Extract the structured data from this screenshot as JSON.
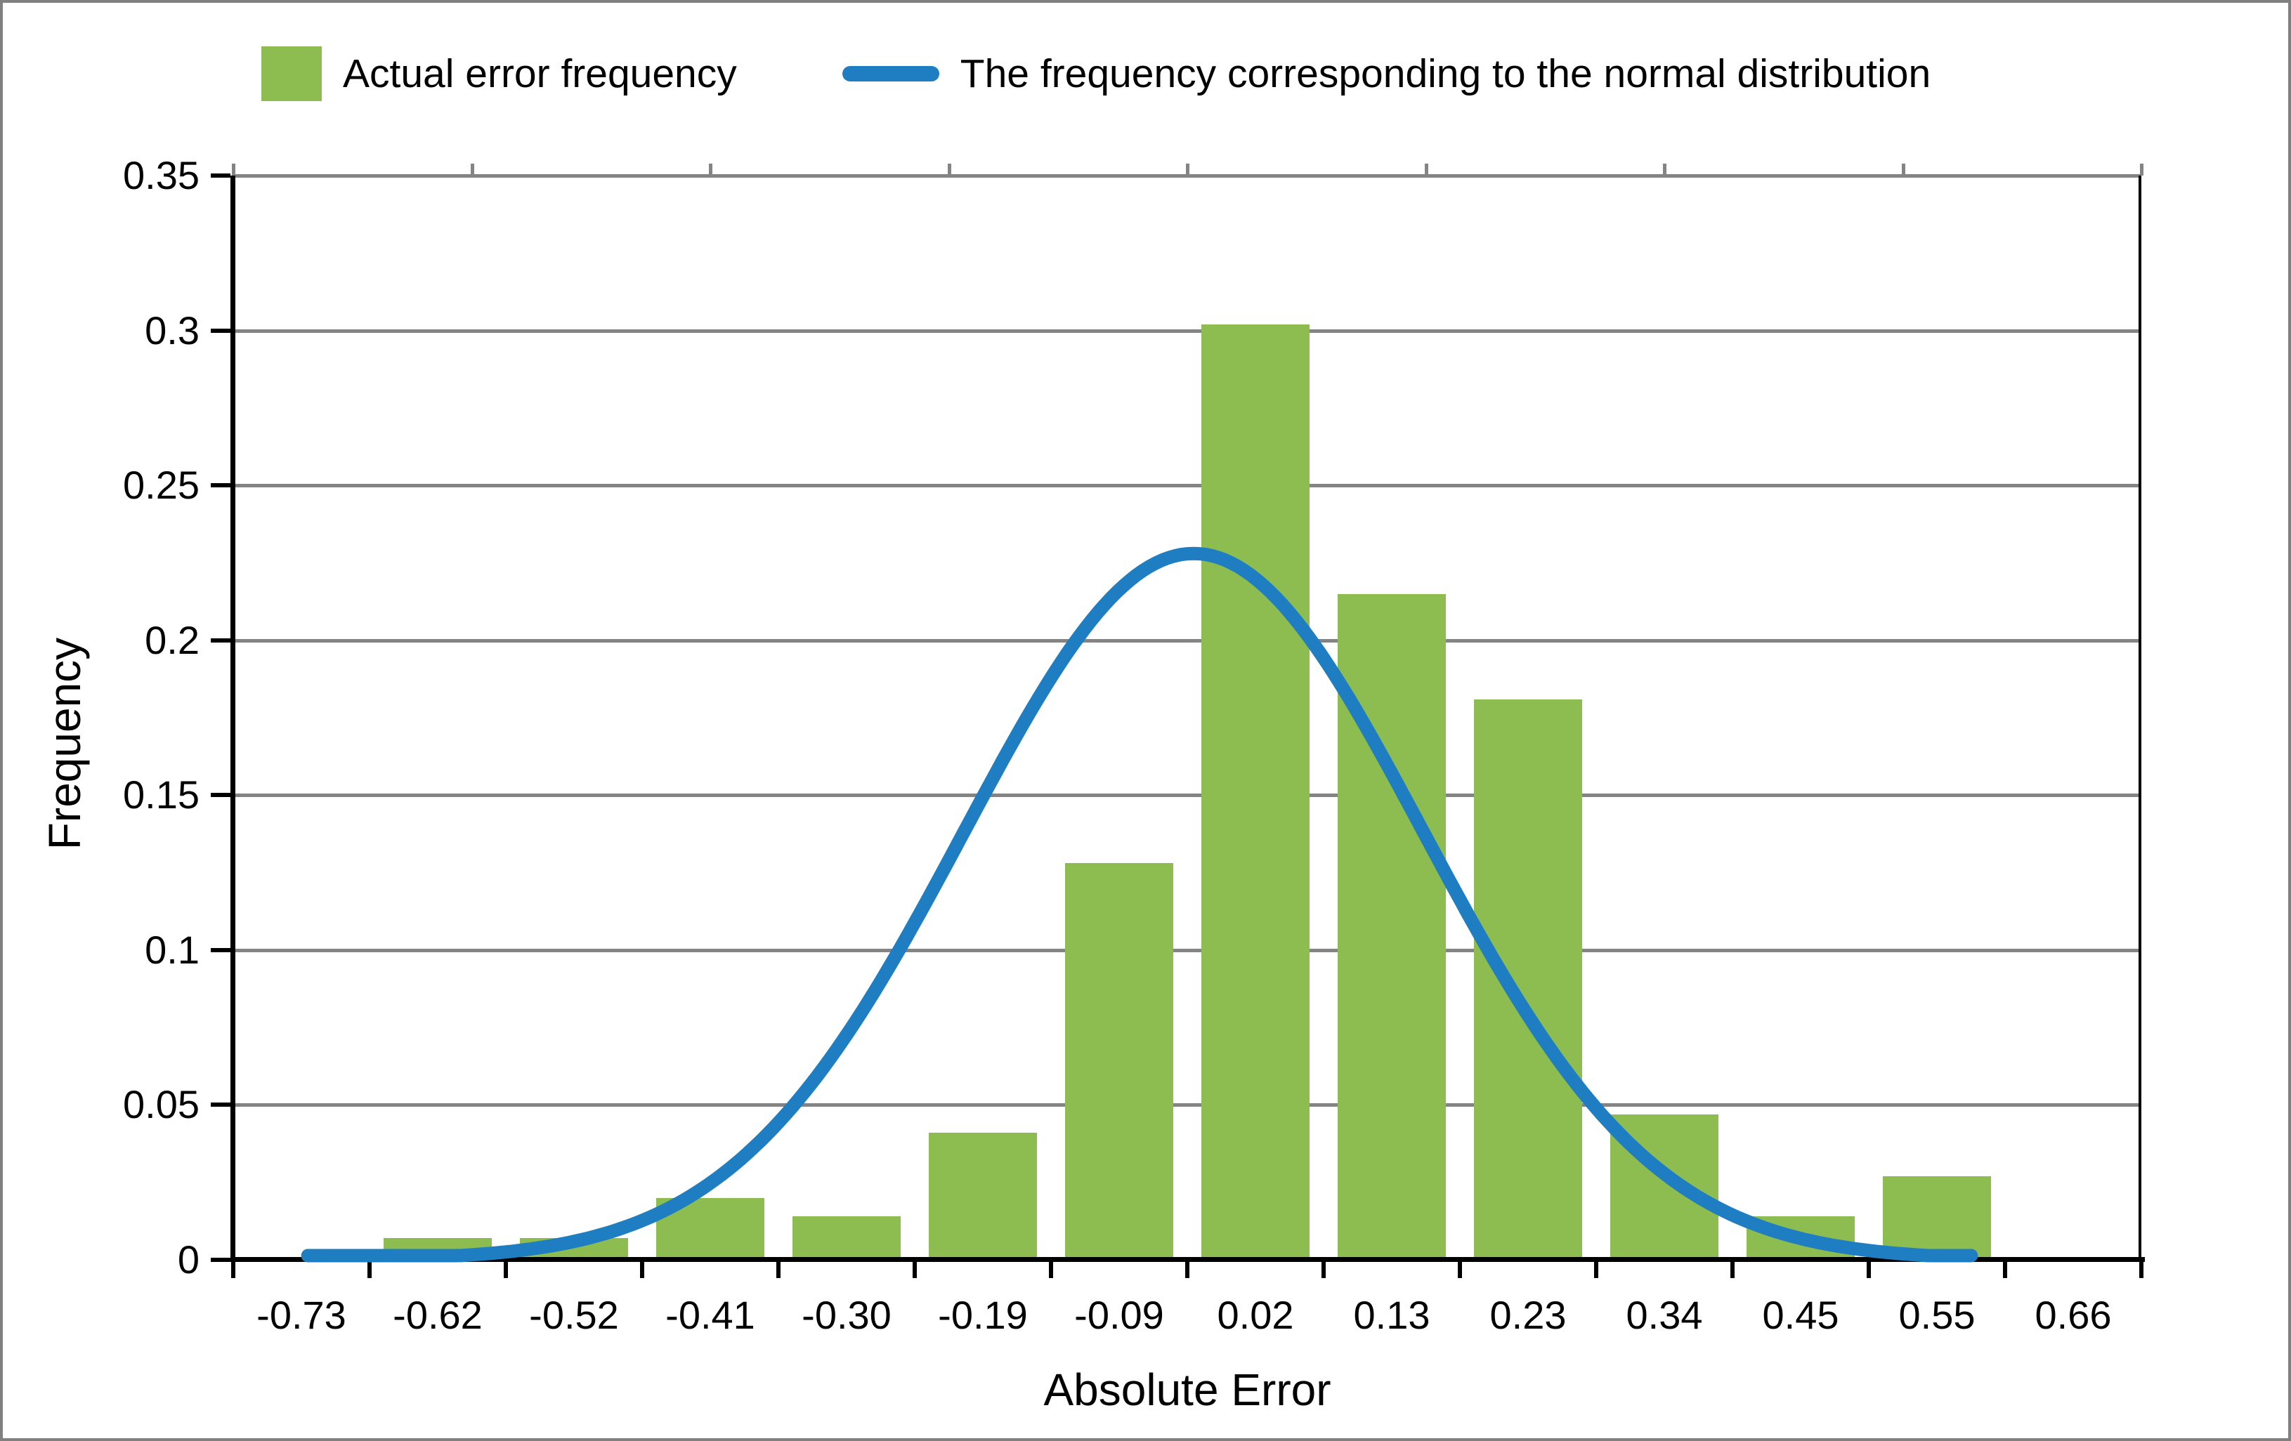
{
  "legend": {
    "items": [
      {
        "label": "Actual error frequency",
        "swatch": "square",
        "color": "#8DBC50"
      },
      {
        "label": "The frequency corresponding to the normal distribution",
        "swatch": "line",
        "color": "#1F7EC1"
      }
    ]
  },
  "chart_data": {
    "type": "bar",
    "title": "",
    "xlabel": "Absolute Error",
    "ylabel": "Frequency",
    "categories": [
      "-0.73",
      "-0.62",
      "-0.52",
      "-0.41",
      "-0.30",
      "-0.19",
      "-0.09",
      "0.02",
      "0.13",
      "0.23",
      "0.34",
      "0.45",
      "0.55",
      "0.66"
    ],
    "series": [
      {
        "name": "Actual error frequency",
        "type": "bar",
        "color": "#8DBC50",
        "values": [
          0,
          0.007,
          0.007,
          0.02,
          0.014,
          0.041,
          0.128,
          0.302,
          0.215,
          0.181,
          0.047,
          0.014,
          0.027,
          0
        ]
      },
      {
        "name": "The frequency corresponding to the normal distribution",
        "type": "line",
        "color": "#1F7EC1",
        "normal_curve": {
          "mean": -0.03,
          "sigma": 0.18,
          "peak": 0.228,
          "x_start": -0.725,
          "x_end": 0.58
        }
      }
    ],
    "y_ticks": [
      "0.35",
      "0.3",
      "0.25",
      "0.2",
      "0.15",
      "0.1",
      "0.05",
      "0"
    ],
    "ylim": [
      0,
      0.35
    ],
    "x_edge_min": -0.7835,
    "x_edge_max": 0.7135,
    "grid": "horizontal-gray",
    "gridline_color": "#848484",
    "axis_color": "#000000",
    "frame_color": "#808080",
    "legend_position": "top-center",
    "top_axis_tick_count": 9
  }
}
